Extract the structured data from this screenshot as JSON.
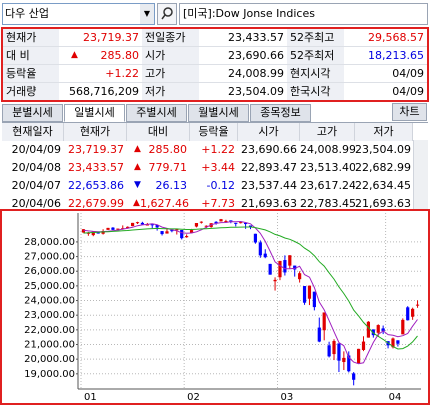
{
  "search": {
    "name": "다우 산업",
    "market": "[미국]:Dow Jonse Indices"
  },
  "quote": {
    "change_sign": "▲",
    "rows": [
      [
        "현재가",
        "23,719.37",
        "전일종가",
        "23,433.57",
        "52주최고",
        "29,568.57"
      ],
      [
        "대 비",
        "285.80",
        "시가",
        "23,690.66",
        "52주최저",
        "18,213.65"
      ],
      [
        "등락율",
        "+1.22",
        "고가",
        "24,008.99",
        "현지시각",
        "04/09"
      ],
      [
        "거래량",
        "568,716,209",
        "저가",
        "23,504.09",
        "한국시각",
        "04/09"
      ]
    ],
    "colors": [
      [
        "#000000",
        "#e00000",
        "#000000",
        "#000000",
        "#000000",
        "#e00000"
      ],
      [
        "#000000",
        "#e00000",
        "#000000",
        "#000000",
        "#000000",
        "#0000e0"
      ],
      [
        "#000000",
        "#e00000",
        "#000000",
        "#000000",
        "#000000",
        "#000000"
      ],
      [
        "#000000",
        "#000000",
        "#000000",
        "#000000",
        "#000000",
        "#000000"
      ]
    ]
  },
  "daily": {
    "tabs": [
      "분별시세",
      "일별시세",
      "주별시세",
      "월별시세",
      "종목정보"
    ],
    "active_tab": 1,
    "chart_button": "차트",
    "header": [
      "현재일자",
      "현재가",
      "대비",
      "등락율",
      "시가",
      "고가",
      "저가"
    ],
    "rows": [
      [
        "20/04/09",
        "23,719.37",
        "▲",
        "285.80",
        "+1.22",
        "23,690.66",
        "24,008.99",
        "23,504.09"
      ],
      [
        "20/04/08",
        "23,433.57",
        "▲",
        "779.71",
        "+3.44",
        "22,893.47",
        "23,513.40",
        "22,682.99"
      ],
      [
        "20/04/07",
        "22,653.86",
        "▼",
        "26.13",
        "-0.12",
        "23,537.44",
        "23,617.24",
        "22,634.45"
      ],
      [
        "20/04/06",
        "22,679.99",
        "▲",
        "1,627.46",
        "+7.73",
        "21,693.63",
        "22,783.45",
        "21,693.63"
      ]
    ]
  },
  "chart_data": {
    "type": "candlestick",
    "categories": [
      "01",
      null,
      null,
      null,
      null,
      null,
      null,
      null,
      null,
      null,
      null,
      null,
      null,
      null,
      null,
      null,
      null,
      null,
      null,
      null,
      null,
      "02",
      null,
      null,
      null,
      null,
      null,
      null,
      null,
      null,
      null,
      null,
      null,
      null,
      null,
      null,
      null,
      null,
      null,
      null,
      "03",
      null,
      null,
      null,
      null,
      null,
      null,
      null,
      null,
      null,
      null,
      null,
      null,
      null,
      null,
      null,
      null,
      null,
      null,
      null,
      null,
      null,
      "04",
      null,
      null,
      null,
      null,
      null,
      null
    ],
    "open": [
      28639,
      28553,
      28465,
      28639,
      28556,
      28823,
      28977,
      28874,
      28876,
      28924,
      29080,
      29313,
      29300,
      29180,
      29200,
      29150,
      28740,
      28570,
      28809,
      28802,
      28813,
      28319,
      28602,
      29048,
      29380,
      29100,
      29020,
      29370,
      29400,
      29400,
      29470,
      29300,
      29300,
      29300,
      29120,
      28556,
      27967,
      27200,
      26500,
      25317,
      25590,
      26762,
      26383,
      26384,
      25457,
      24990,
      24124,
      24605,
      22154,
      21973,
      20943,
      20346,
      21074,
      19804,
      20253,
      19029,
      19722,
      20626,
      21469,
      22030,
      21800,
      22100,
      21227,
      20819,
      21285,
      21693.63,
      23537.44,
      22893.47,
      23690.66
    ],
    "high": [
      28872,
      28682,
      28709,
      28686,
      28866,
      28960,
      29009,
      28908,
      29127,
      29063,
      29298,
      29374,
      29373,
      29294,
      29200,
      29164,
      28740,
      28891,
      28892,
      28892,
      28814,
      28513,
      28892,
      29290,
      29408,
      29135,
      29277,
      29416,
      29568,
      29510,
      29470,
      29300,
      29407,
      29324,
      29120,
      28556,
      28104,
      27500,
      26500,
      25583,
      26706,
      27084,
      27091,
      26384,
      25995,
      24992,
      25018,
      24605,
      22837,
      23186,
      21189,
      21357,
      21074,
      20531,
      20531,
      19121,
      20705,
      21565,
      22596,
      22030,
      22378,
      22293,
      21227,
      21477,
      21285,
      22783.45,
      23617.24,
      23513.4,
      24008.99
    ],
    "low": [
      28627,
      28418,
      28389,
      28565,
      28502,
      28821,
      28803,
      28767,
      28836,
      28902,
      29073,
      29226,
      29163,
      29145,
      28933,
      28773,
      28440,
      28570,
      28658,
      28504,
      28169,
      28284,
      28584,
      28991,
      29253,
      28937,
      28970,
      29179,
      29400,
      29328,
      29275,
      29056,
      29255,
      28892,
      28876,
      27876,
      26918,
      26887,
      25766,
      24681,
      25391,
      25706,
      26153,
      25633,
      25227,
      23706,
      23690,
      23328,
      21155,
      21285,
      20117,
      19938,
      19122,
      19258,
      19094,
      18214,
      19722,
      20544,
      21469,
      21469,
      21522,
      21711,
      20736,
      20735,
      20863,
      21693.63,
      22634.45,
      22682.99,
      23504.09
    ],
    "close": [
      28868,
      28634,
      28703,
      28583,
      28745,
      28957,
      28824,
      28908,
      28940,
      29030,
      29298,
      29348,
      29196,
      29186,
      29160,
      28990,
      28535,
      28723,
      28734,
      28859,
      28256,
      28400,
      28808,
      29290,
      29380,
      29103,
      29276,
      29276,
      29551,
      29424,
      29398,
      29232,
      29348,
      29219,
      28992,
      27961,
      27081,
      26957,
      25766,
      25409,
      26703,
      25917,
      27091,
      26121,
      25865,
      23851,
      25018,
      23553,
      21200,
      23186,
      20189,
      21237,
      19899,
      20087,
      19174,
      18592,
      20704,
      21200,
      22552,
      21637,
      22327,
      21917,
      20944,
      21413,
      21053,
      22679.99,
      22653.86,
      23433.57,
      23719.37
    ],
    "up_color": "#e00000",
    "down_color": "#0000ff",
    "lines": [
      {
        "color": "#a020c0",
        "values": [
          28800,
          28750,
          28720,
          28700,
          28707,
          28724,
          28762,
          28803,
          28875,
          28932,
          29000,
          29105,
          29164,
          29192,
          29238,
          29176,
          29013,
          28919,
          28828,
          28760,
          28621,
          28594,
          28611,
          28693,
          28827,
          28996,
          29171,
          29265,
          29317,
          29326,
          29385,
          29376,
          29391,
          29324,
          29238,
          28950,
          28585,
          28042,
          27353,
          26635,
          26383,
          26166,
          26169,
          26191,
          26339,
          25769,
          25589,
          24882,
          23897,
          23362,
          22629,
          21873,
          21139,
          20920,
          20117,
          19796,
          19691,
          19753,
          20444,
          21137,
          21684,
          21927,
          21675,
          21630,
          21531,
          21603,
          21749,
          22247,
          22708
        ]
      },
      {
        "color": "#22aa22",
        "values": [
          28600,
          28620,
          28640,
          28660,
          28680,
          28700,
          28720,
          28740,
          28760,
          28780,
          28810,
          28840,
          28870,
          28890,
          28910,
          28920,
          28910,
          28900,
          28890,
          28890,
          28870,
          28850,
          28850,
          28860,
          28890,
          28900,
          28920,
          28940,
          28960,
          28980,
          29000,
          29000,
          29010,
          29020,
          29020,
          28980,
          28900,
          28820,
          28680,
          28510,
          28410,
          28270,
          28180,
          28030,
          27860,
          27580,
          27360,
          27060,
          26650,
          26350,
          25890,
          25460,
          24930,
          24480,
          23960,
          23350,
          22950,
          22510,
          22160,
          21780,
          21560,
          21350,
          21100,
          20860,
          20690,
          20720,
          20890,
          21180,
          21580
        ]
      }
    ],
    "ylim": [
      18100,
      29700
    ],
    "yticks": [
      {
        "value": 28000,
        "label": "28,000.00"
      },
      {
        "value": 27000,
        "label": "27,000.00"
      },
      {
        "value": 26000,
        "label": "26,000.00"
      },
      {
        "value": 25000,
        "label": "25,000.00"
      },
      {
        "value": 24000,
        "label": "24,000.00"
      },
      {
        "value": 23000,
        "label": "23,000.00"
      },
      {
        "value": 22000,
        "label": "22,000.00"
      },
      {
        "value": 21000,
        "label": "21,000.00"
      },
      {
        "value": 20000,
        "label": "20,000.00"
      },
      {
        "value": 19000,
        "label": "19,000.00"
      }
    ],
    "grid": true
  }
}
